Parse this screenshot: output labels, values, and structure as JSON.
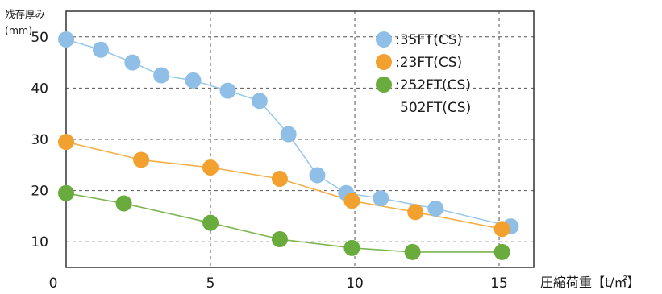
{
  "chart_data": {
    "type": "line",
    "ylabel_line1": "残存厚み",
    "ylabel_line2": "(mm)",
    "xlabel": "圧縮荷重【t/㎡】",
    "xlim": [
      0,
      16.2
    ],
    "ylim": [
      5,
      55
    ],
    "xticks": [
      0,
      5,
      10,
      15
    ],
    "yticks": [
      10,
      20,
      30,
      40,
      50
    ],
    "grid": "dashed",
    "legend_position": "top-right",
    "series": [
      {
        "name": ":35FT(CS)",
        "color": "#8fbfe6",
        "line_color": "#9cc8ea",
        "points": [
          [
            0,
            49.5
          ],
          [
            1.2,
            47.5
          ],
          [
            2.3,
            45
          ],
          [
            3.3,
            42.5
          ],
          [
            4.4,
            41.5
          ],
          [
            5.6,
            39.5
          ],
          [
            6.7,
            37.5
          ],
          [
            7.7,
            31
          ],
          [
            8.7,
            23
          ],
          [
            9.7,
            19.5
          ],
          [
            10.9,
            18.5
          ],
          [
            12.8,
            16.5
          ],
          [
            15.4,
            13
          ]
        ]
      },
      {
        "name": ":23FT(CS)",
        "color": "#f2a12e",
        "line_color": "#f2b04a",
        "points": [
          [
            0,
            29.5
          ],
          [
            2.6,
            26
          ],
          [
            5.0,
            24.5
          ],
          [
            7.4,
            22.3
          ],
          [
            9.9,
            18
          ],
          [
            12.1,
            15.8
          ],
          [
            15.1,
            12.5
          ]
        ]
      },
      {
        "name": ":252FT(CS)",
        "color": "#6aab3e",
        "line_color": "#7cb44f",
        "points": [
          [
            0,
            19.5
          ],
          [
            2.0,
            17.5
          ],
          [
            5.0,
            13.7
          ],
          [
            7.4,
            10.5
          ],
          [
            9.9,
            8.8
          ],
          [
            12.0,
            8
          ],
          [
            15.1,
            8
          ]
        ]
      }
    ],
    "legend_extra": "502FT(CS)"
  }
}
